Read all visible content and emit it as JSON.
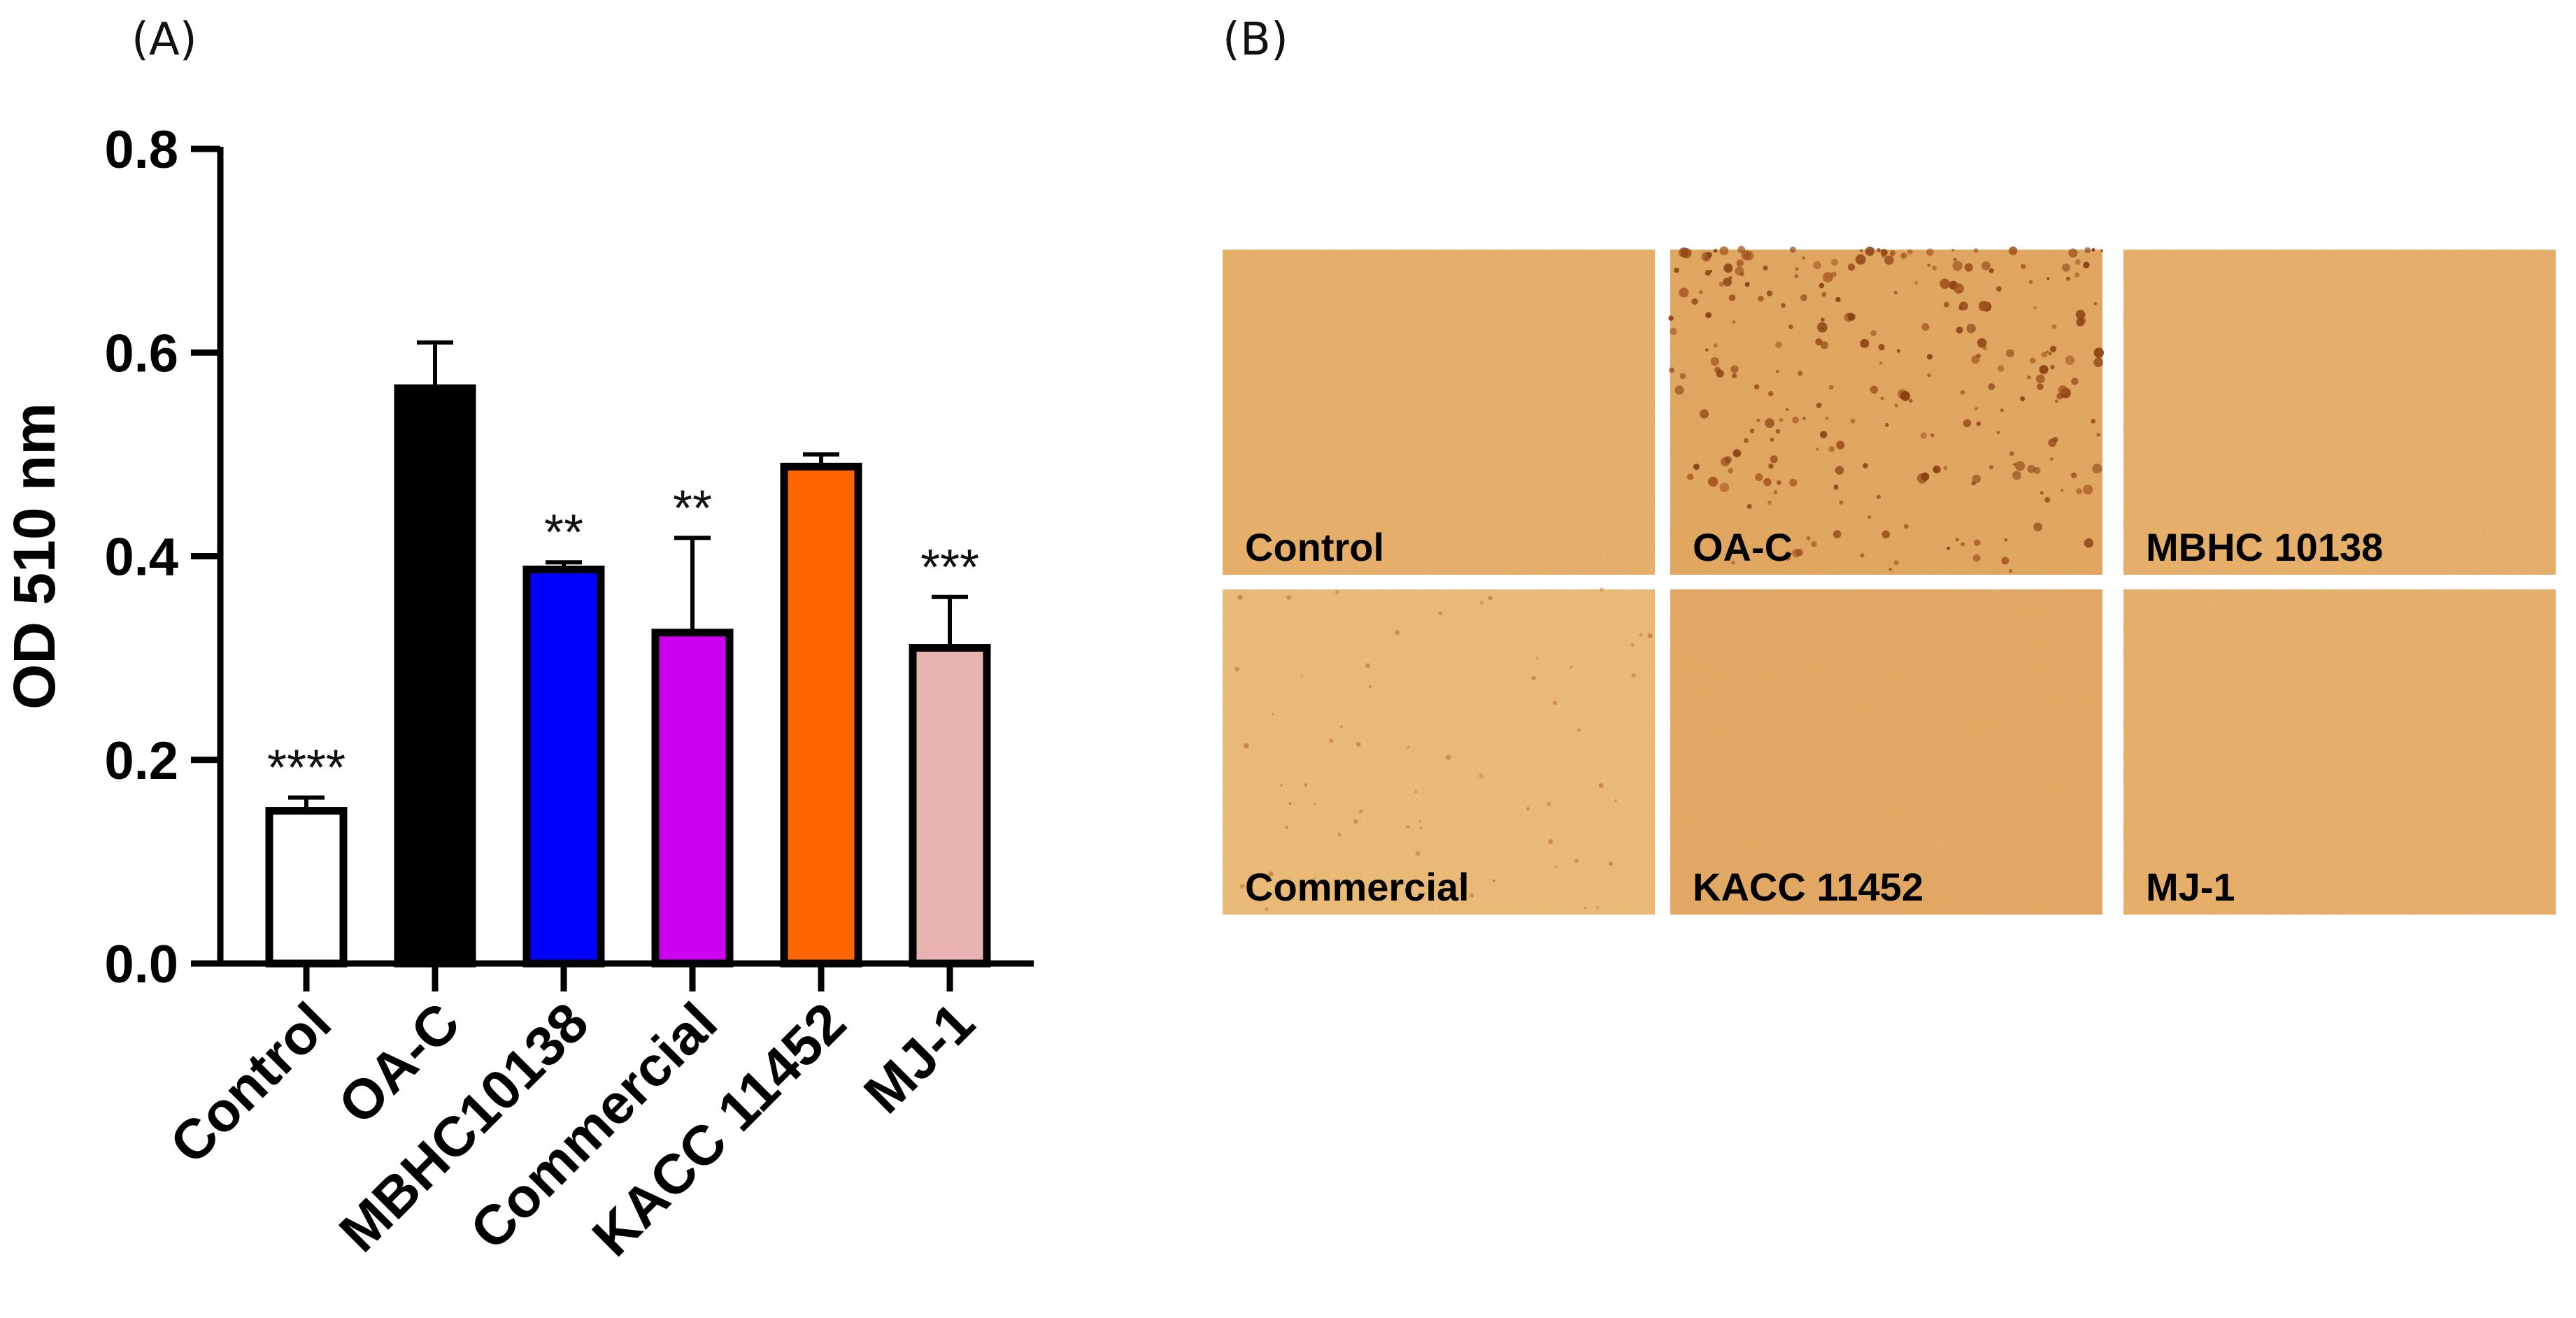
{
  "panel_a_label": "(A)",
  "panel_b_label": "(B)",
  "chart_data": {
    "type": "bar",
    "title": "",
    "xlabel": "",
    "ylabel": "OD 510 nm",
    "ylim": [
      0,
      0.8
    ],
    "yticks": [
      "0.0",
      "0.2",
      "0.4",
      "0.6",
      "0.8"
    ],
    "ytick_values": [
      0,
      0.2,
      0.4,
      0.6,
      0.8
    ],
    "grid": false,
    "legend": "none",
    "categories": [
      "Control",
      "OA-C",
      "MBHC10138",
      "Commercial",
      "KACC 11452",
      "MJ-1"
    ],
    "values": [
      0.15,
      0.565,
      0.387,
      0.325,
      0.488,
      0.31
    ],
    "error": [
      0.013,
      0.045,
      0.007,
      0.093,
      0.012,
      0.05
    ],
    "significance": [
      "****",
      "",
      "**",
      "**",
      "",
      "***"
    ],
    "colors": [
      "#ffffff",
      "#000000",
      "#0000ff",
      "#cc00ee",
      "#ff6600",
      "#e8b4b2"
    ]
  },
  "image_panels": [
    {
      "caption": "Control",
      "tone": "plain"
    },
    {
      "caption": "OA-C",
      "tone": "dotted"
    },
    {
      "caption": "MBHC 10138",
      "tone": "plain"
    },
    {
      "caption": "Commercial",
      "tone": "light"
    },
    {
      "caption": "KACC 11452",
      "tone": "mottled"
    },
    {
      "caption": "MJ-1",
      "tone": "plain"
    }
  ]
}
